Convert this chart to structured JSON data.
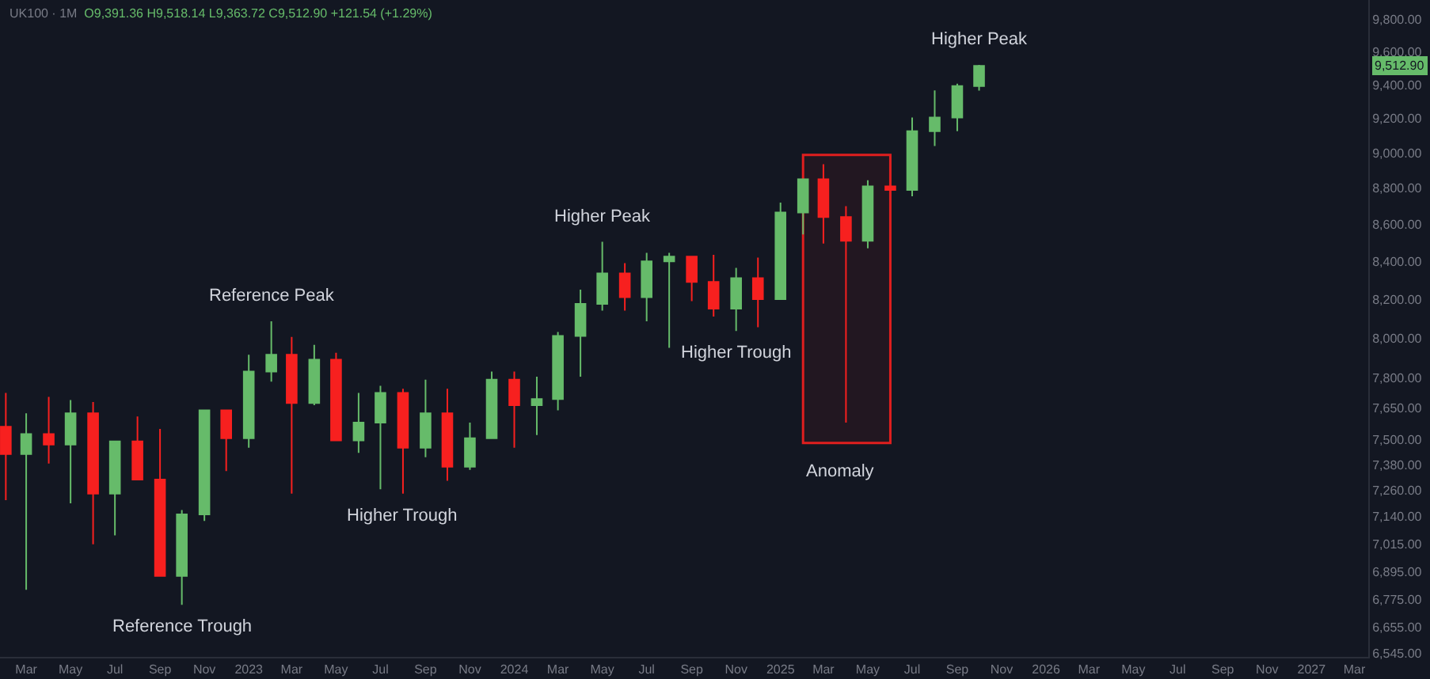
{
  "chart_data": {
    "type": "candlestick",
    "title": "UK100 · 1M",
    "subtitle": "O9,391.36 H9,518.14 L9,363.72 C9,512.90 +121.54 (+1.29%)",
    "x": [
      "2022-02",
      "2022-03",
      "2022-04",
      "2022-05",
      "2022-06",
      "2022-07",
      "2022-08",
      "2022-09",
      "2022-10",
      "2022-11",
      "2022-12",
      "2023-01",
      "2023-02",
      "2023-03",
      "2023-04",
      "2023-05",
      "2023-06",
      "2023-07",
      "2023-08",
      "2023-09",
      "2023-10",
      "2023-11",
      "2023-12",
      "2024-01",
      "2024-02",
      "2024-03",
      "2024-04",
      "2024-05",
      "2024-06",
      "2024-07",
      "2024-08",
      "2024-09",
      "2024-10",
      "2024-11",
      "2024-12",
      "2025-01",
      "2025-02",
      "2025-03",
      "2025-04",
      "2025-05",
      "2025-06",
      "2025-07",
      "2025-08",
      "2025-09",
      "2025-10"
    ],
    "ohlc": [
      [
        7560,
        7725,
        7215,
        7430
      ],
      [
        7430,
        7625,
        6815,
        7525
      ],
      [
        7525,
        7705,
        7385,
        7475
      ],
      [
        7475,
        7690,
        7200,
        7625
      ],
      [
        7625,
        7680,
        7015,
        7245
      ],
      [
        7245,
        7490,
        7055,
        7490
      ],
      [
        7490,
        7610,
        7310,
        7310
      ],
      [
        7310,
        7550,
        6875,
        6875
      ],
      [
        6875,
        7170,
        6750,
        7150
      ],
      [
        7150,
        7640,
        7120,
        7640
      ],
      [
        7640,
        7640,
        7350,
        7505
      ],
      [
        7505,
        7915,
        7460,
        7830
      ],
      [
        7830,
        8085,
        7780,
        7915
      ],
      [
        7915,
        8005,
        7245,
        7675
      ],
      [
        7675,
        7965,
        7665,
        7890
      ],
      [
        7890,
        7925,
        7495,
        7495
      ],
      [
        7495,
        7725,
        7435,
        7580
      ],
      [
        7580,
        7760,
        7265,
        7725
      ],
      [
        7725,
        7745,
        7245,
        7460
      ],
      [
        7460,
        7790,
        7415,
        7625
      ],
      [
        7625,
        7745,
        7305,
        7370
      ],
      [
        7370,
        7580,
        7355,
        7505
      ],
      [
        7505,
        7830,
        7505,
        7790
      ],
      [
        7790,
        7830,
        7460,
        7665
      ],
      [
        7665,
        7805,
        7520,
        7695
      ],
      [
        7695,
        8030,
        7640,
        8010
      ],
      [
        8010,
        8250,
        7805,
        8175
      ],
      [
        8175,
        8505,
        8140,
        8335
      ],
      [
        8335,
        8390,
        8140,
        8210
      ],
      [
        8210,
        8445,
        8085,
        8400
      ],
      [
        8400,
        8445,
        7950,
        8425
      ],
      [
        8425,
        8425,
        8190,
        8290
      ],
      [
        8290,
        8435,
        8110,
        8150
      ],
      [
        8150,
        8365,
        8035,
        8310
      ],
      [
        8310,
        8420,
        8055,
        8200
      ],
      [
        8200,
        8720,
        8200,
        8665
      ],
      [
        8665,
        8850,
        8545,
        8850
      ],
      [
        8850,
        8935,
        8495,
        8640
      ],
      [
        8640,
        8700,
        7580,
        8510
      ],
      [
        8510,
        8845,
        8470,
        8810
      ],
      [
        8810,
        8810,
        8790,
        8790
      ],
      [
        8790,
        9205,
        8755,
        9125
      ],
      [
        9125,
        9365,
        9040,
        9205
      ],
      [
        9205,
        9405,
        9125,
        9391.36
      ],
      [
        9391.36,
        9518.14,
        9363.72,
        9512.9
      ]
    ],
    "colors": [
      "#f7201f",
      "#66bb6a",
      "#f7201f",
      "#66bb6a",
      "#f7201f",
      "#66bb6a",
      "#f7201f",
      "#f7201f",
      "#66bb6a",
      "#66bb6a",
      "#f7201f",
      "#66bb6a",
      "#66bb6a",
      "#f7201f",
      "#66bb6a",
      "#f7201f",
      "#66bb6a",
      "#66bb6a",
      "#f7201f",
      "#66bb6a",
      "#f7201f",
      "#66bb6a",
      "#66bb6a",
      "#f7201f",
      "#66bb6a",
      "#66bb6a",
      "#66bb6a",
      "#66bb6a",
      "#f7201f",
      "#66bb6a",
      "#66bb6a",
      "#f7201f",
      "#f7201f",
      "#66bb6a",
      "#f7201f",
      "#66bb6a",
      "#66bb6a",
      "#f7201f",
      "#f7201f",
      "#66bb6a",
      "#f7201f",
      "#66bb6a",
      "#66bb6a",
      "#66bb6a",
      "#66bb6a"
    ],
    "log": "y",
    "xlim": [
      "2022-01-24",
      "2027-03-20"
    ],
    "xticks": [
      {
        "value": "2022-03-01",
        "label": "Mar"
      },
      {
        "value": "2022-05-01",
        "label": "May"
      },
      {
        "value": "2022-07-01",
        "label": "Jul"
      },
      {
        "value": "2022-09-01",
        "label": "Sep"
      },
      {
        "value": "2022-11-01",
        "label": "Nov"
      },
      {
        "value": "2023-01-01",
        "label": "2023"
      },
      {
        "value": "2023-03-01",
        "label": "Mar"
      },
      {
        "value": "2023-05-01",
        "label": "May"
      },
      {
        "value": "2023-07-01",
        "label": "Jul"
      },
      {
        "value": "2023-09-01",
        "label": "Sep"
      },
      {
        "value": "2023-11-01",
        "label": "Nov"
      },
      {
        "value": "2024-01-01",
        "label": "2024"
      },
      {
        "value": "2024-03-01",
        "label": "Mar"
      },
      {
        "value": "2024-05-01",
        "label": "May"
      },
      {
        "value": "2024-07-01",
        "label": "Jul"
      },
      {
        "value": "2024-09-01",
        "label": "Sep"
      },
      {
        "value": "2024-11-01",
        "label": "Nov"
      },
      {
        "value": "2025-01-01",
        "label": "2025"
      },
      {
        "value": "2025-03-01",
        "label": "Mar"
      },
      {
        "value": "2025-05-01",
        "label": "May"
      },
      {
        "value": "2025-07-01",
        "label": "Jul"
      },
      {
        "value": "2025-09-01",
        "label": "Sep"
      },
      {
        "value": "2025-11-01",
        "label": "Nov"
      },
      {
        "value": "2026-01-01",
        "label": "2026"
      },
      {
        "value": "2026-03-01",
        "label": "Mar"
      },
      {
        "value": "2026-05-01",
        "label": "May"
      },
      {
        "value": "2026-07-01",
        "label": "Jul"
      },
      {
        "value": "2026-09-01",
        "label": "Sep"
      },
      {
        "value": "2026-11-01",
        "label": "Nov"
      },
      {
        "value": "2027-01-01",
        "label": "2027"
      },
      {
        "value": "2027-03-01",
        "label": "Mar"
      }
    ],
    "ylim": [
      6530,
      9920
    ],
    "yticks": [
      {
        "value": 6545,
        "label": "6,545.00"
      },
      {
        "value": 6655,
        "label": "6,655.00"
      },
      {
        "value": 6775,
        "label": "6,775.00"
      },
      {
        "value": 6895,
        "label": "6,895.00"
      },
      {
        "value": 7015,
        "label": "7,015.00"
      },
      {
        "value": 7140,
        "label": "7,140.00"
      },
      {
        "value": 7260,
        "label": "7,260.00"
      },
      {
        "value": 7380,
        "label": "7,380.00"
      },
      {
        "value": 7500,
        "label": "7,500.00"
      },
      {
        "value": 7650,
        "label": "7,650.00"
      },
      {
        "value": 7800,
        "label": "7,800.00"
      },
      {
        "value": 8000,
        "label": "8,000.00"
      },
      {
        "value": 8200,
        "label": "8,200.00"
      },
      {
        "value": 8400,
        "label": "8,400.00"
      },
      {
        "value": 8600,
        "label": "8,600.00"
      },
      {
        "value": 8800,
        "label": "8,800.00"
      },
      {
        "value": 9000,
        "label": "9,000.00"
      },
      {
        "value": 9200,
        "label": "9,200.00"
      },
      {
        "value": 9400,
        "label": "9,400.00"
      },
      {
        "value": 9600,
        "label": "9,600.00"
      },
      {
        "value": 9800,
        "label": "9,800.00"
      }
    ],
    "grid": false,
    "bands": [
      {
        "axis": "x",
        "from": "2025-02-01",
        "to": "2025-06-01",
        "label": "Anomaly",
        "color": "#f7201f"
      }
    ],
    "annotations": [
      {
        "text": "Reference Peak",
        "x": "2023-02",
        "y": 8085
      },
      {
        "text": "Reference Trough",
        "x": "2022-10",
        "y": 6750
      },
      {
        "text": "Higher Trough",
        "x": "2023-08",
        "y": 7245
      },
      {
        "text": "Higher Peak",
        "x": "2024-05",
        "y": 8505
      },
      {
        "text": "Higher Trough",
        "x": "2024-11",
        "y": 8035
      },
      {
        "text": "Higher Peak",
        "x": "2025-10",
        "y": 9518.14
      },
      {
        "text": "9,512.90",
        "y": 9512.9
      }
    ]
  }
}
